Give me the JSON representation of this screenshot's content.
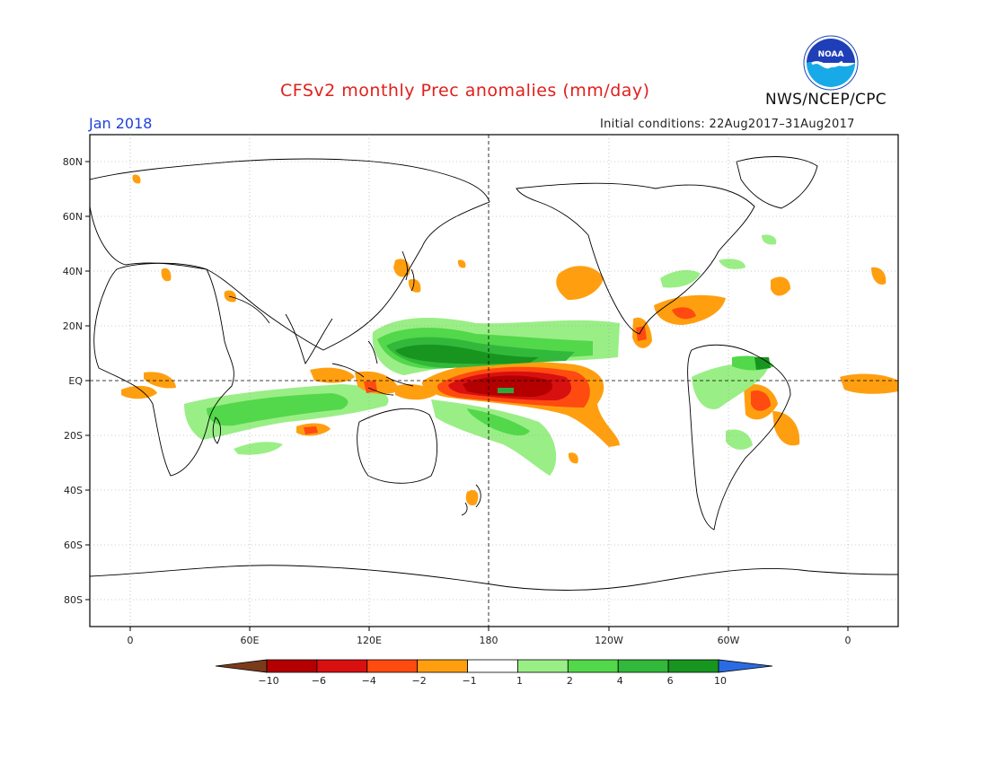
{
  "header": {
    "title": "CFSv2 monthly Prec anomalies (mm/day)",
    "month": "Jan 2018",
    "initial_conditions": "Initial conditions: 22Aug2017–31Aug2017",
    "agency": "NWS/NCEP/CPC",
    "logo_text": "NOAA"
  },
  "axes": {
    "lat_labels": [
      "80N",
      "60N",
      "40N",
      "20N",
      "EQ",
      "20S",
      "40S",
      "60S",
      "80S"
    ],
    "lon_labels": [
      "0",
      "60E",
      "120E",
      "180",
      "120W",
      "60W",
      "0"
    ]
  },
  "colorbar": {
    "labels": [
      "−10",
      "−6",
      "−4",
      "−2",
      "−1",
      "1",
      "2",
      "4",
      "6",
      "10"
    ],
    "colors": [
      "#7a3b1d",
      "#b40000",
      "#d81010",
      "#ff4a10",
      "#ff9f10",
      "#ffffff",
      "#9aee86",
      "#52d84a",
      "#32b83a",
      "#17951f",
      "#2a6be3"
    ]
  },
  "legend_colors": {
    "dry_strong": "#b40000",
    "dry_moderate": "#e82a14",
    "dry_weak": "#ff9f10",
    "wet_weak": "#9aee86",
    "wet_moderate": "#52d84a",
    "wet_strong": "#17951f"
  }
}
